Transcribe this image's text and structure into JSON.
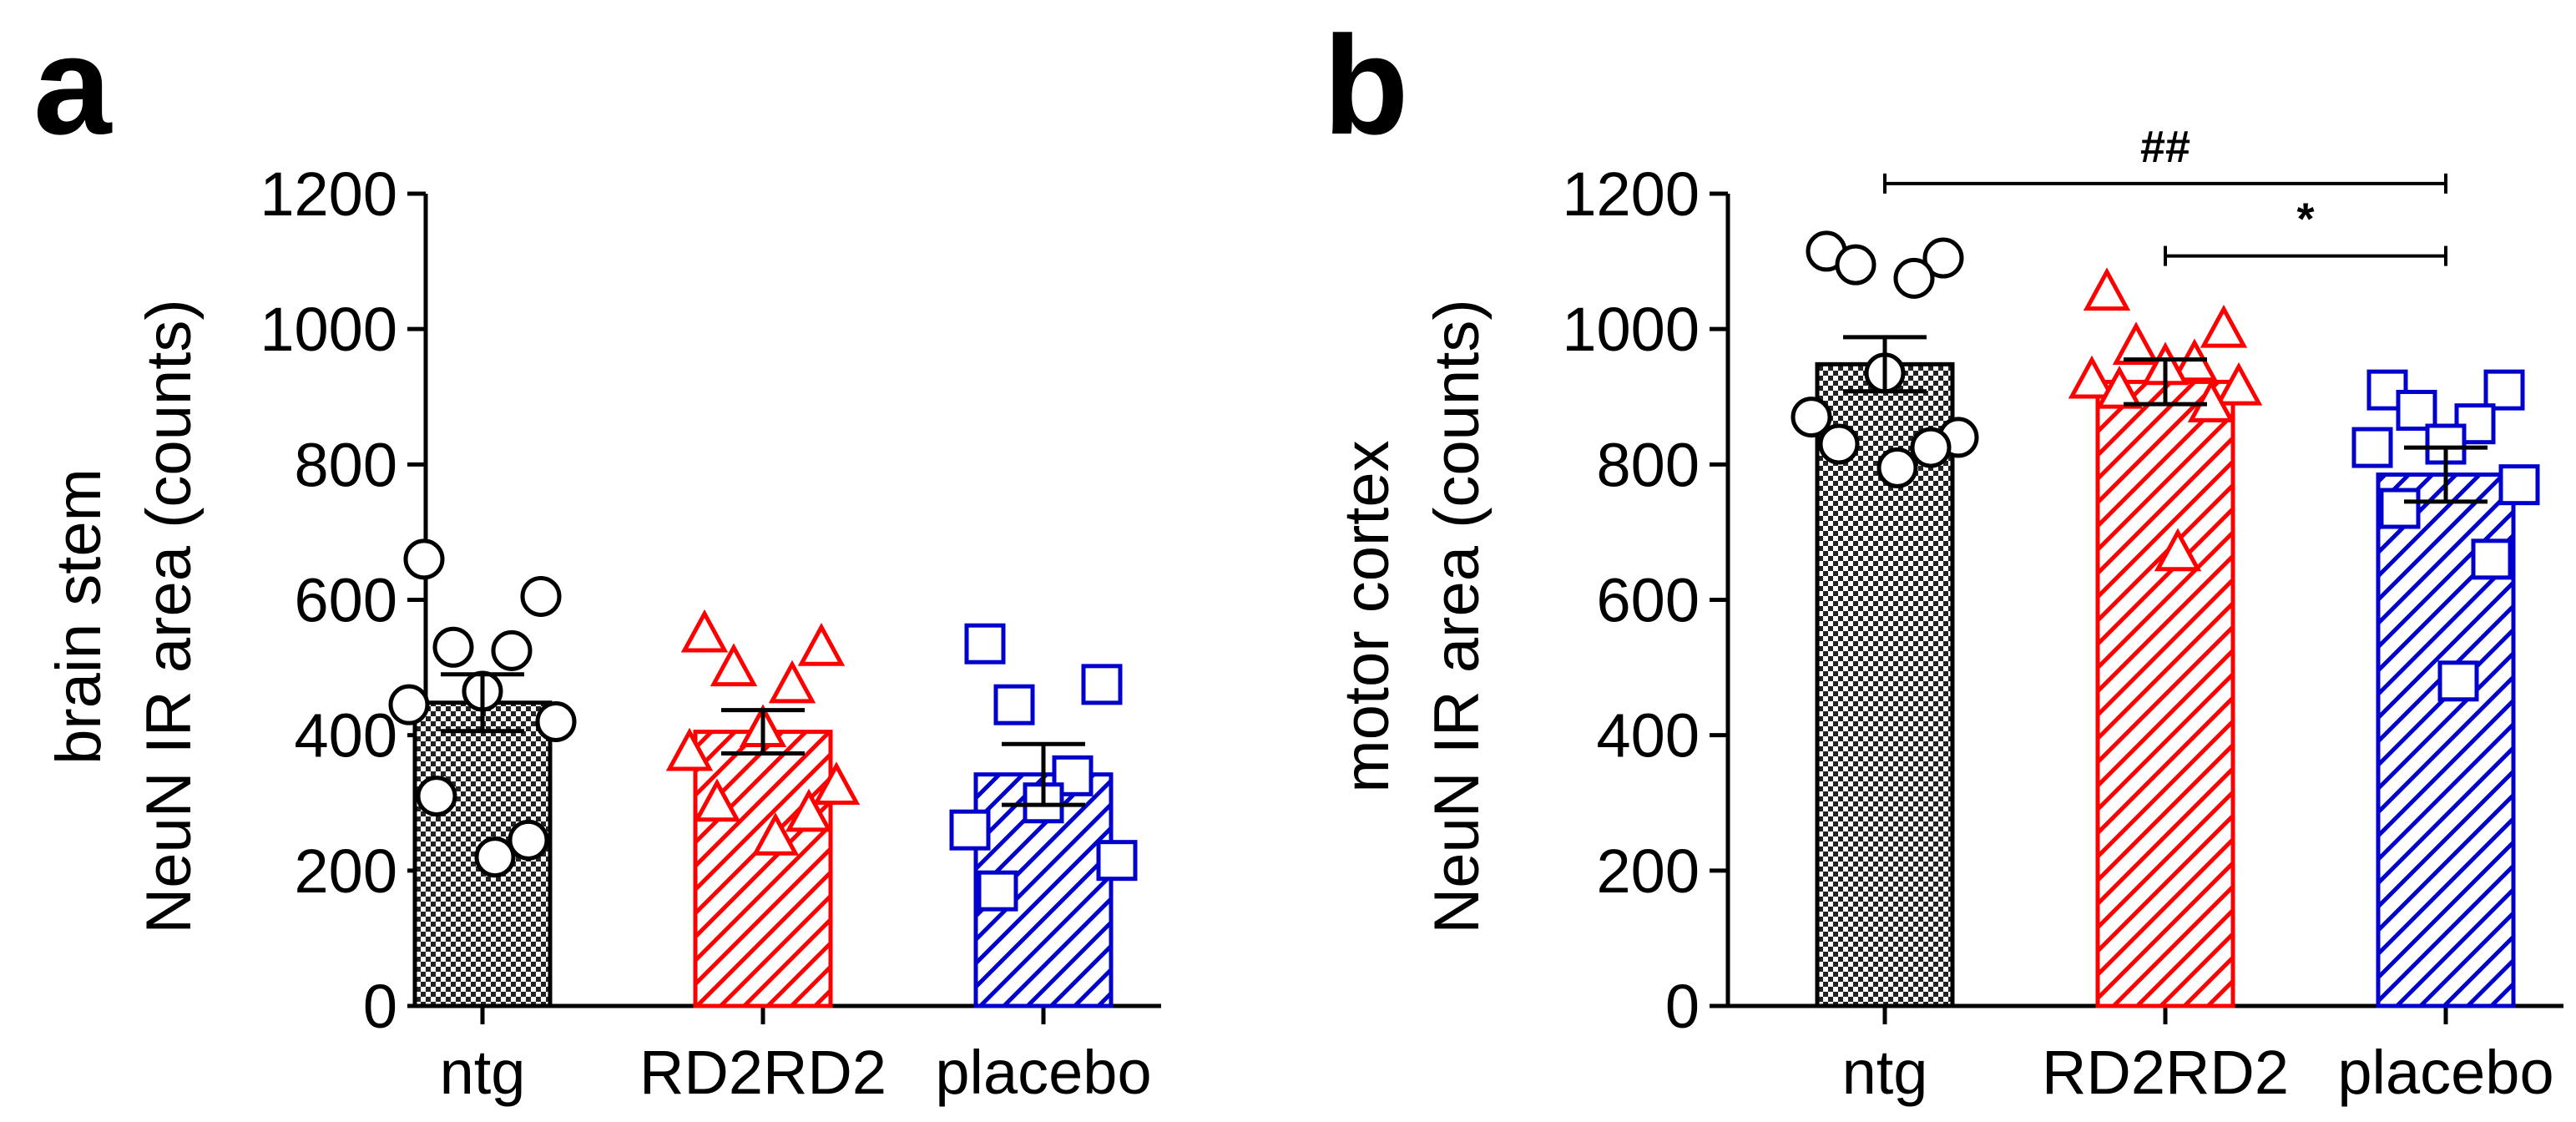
{
  "colors": {
    "ntg": "#000000",
    "RD2RD2": "#ff0000",
    "placebo": "#0000cc",
    "axis": "#000000"
  },
  "chart_data": [
    {
      "panel": "a",
      "type": "bar",
      "categories": [
        "ntg",
        "RD2RD2",
        "placebo"
      ],
      "ylabel_line1": "brain stem",
      "ylabel_line2": "NeuN IR area (counts)",
      "ylim": [
        0,
        1200
      ],
      "yticks": [
        0,
        200,
        400,
        600,
        800,
        1000,
        1200
      ],
      "grid": false,
      "legend": "none",
      "patterns": [
        "checkerboard",
        "hatch",
        "hatch"
      ],
      "markers": [
        "circle",
        "triangle",
        "square"
      ],
      "means": [
        448,
        405,
        342
      ],
      "sem": [
        42,
        32,
        45
      ],
      "points": [
        [
          660,
          605,
          530,
          525,
          465,
          445,
          420,
          310,
          245,
          220
        ],
        [
          550,
          530,
          500,
          475,
          410,
          375,
          325,
          300,
          285,
          250
        ],
        [
          535,
          475,
          445,
          340,
          300,
          260,
          215,
          170
        ]
      ],
      "significance": []
    },
    {
      "panel": "b",
      "type": "bar",
      "categories": [
        "ntg",
        "RD2RD2",
        "placebo"
      ],
      "ylabel_line1": "motor cortex",
      "ylabel_line2": "NeuN IR area (counts)",
      "ylim": [
        0,
        1200
      ],
      "yticks": [
        0,
        200,
        400,
        600,
        800,
        1000,
        1200
      ],
      "grid": false,
      "legend": "none",
      "patterns": [
        "checkerboard",
        "hatch",
        "hatch"
      ],
      "markers": [
        "circle",
        "triangle",
        "square"
      ],
      "means": [
        948,
        922,
        785
      ],
      "sem": [
        40,
        33,
        40
      ],
      "points": [
        [
          1115,
          1105,
          1095,
          1075,
          935,
          870,
          840,
          830,
          825,
          795
        ],
        [
          1055,
          1000,
          975,
          950,
          945,
          925,
          915,
          910,
          890,
          670
        ],
        [
          910,
          910,
          880,
          860,
          830,
          825,
          770,
          735,
          660,
          480
        ]
      ],
      "significance": [
        {
          "from": 0,
          "to": 2,
          "label": "##",
          "y": 1215
        },
        {
          "from": 1,
          "to": 2,
          "label": "*",
          "y": 1108
        }
      ]
    }
  ]
}
